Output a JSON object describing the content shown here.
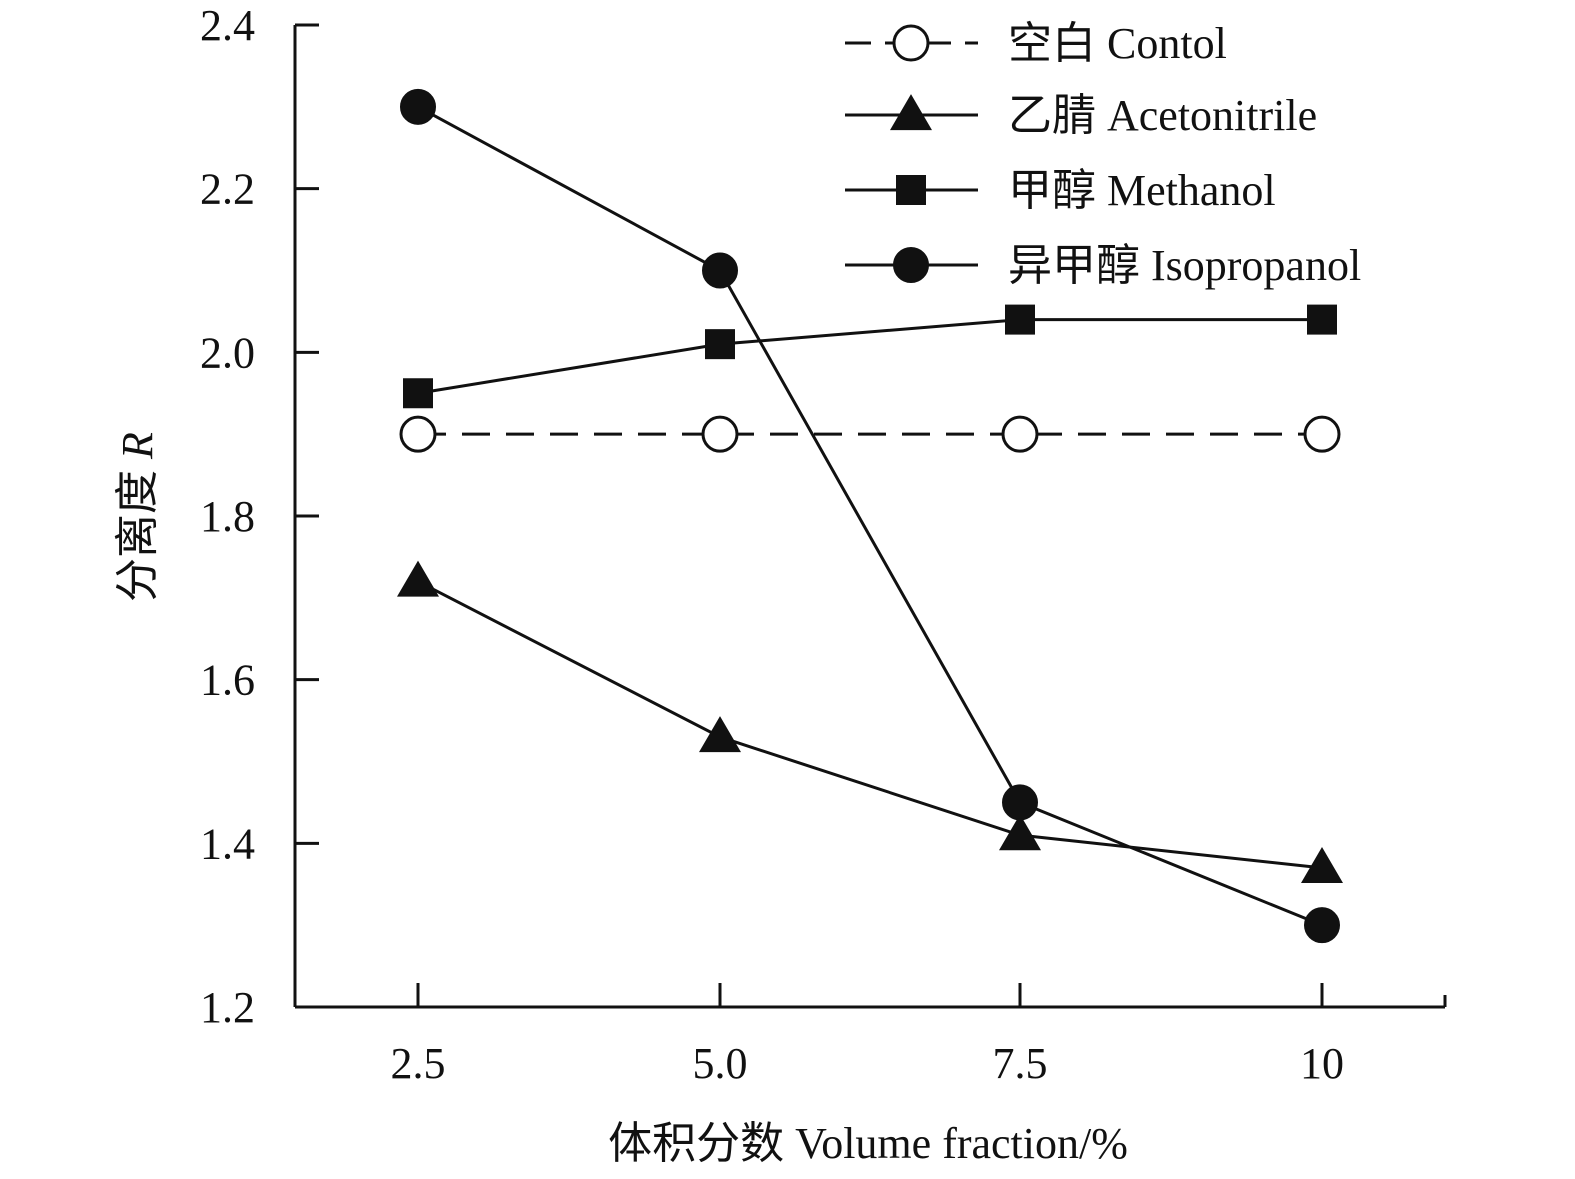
{
  "chart_data": {
    "type": "line",
    "x": [
      "2.5",
      "5.0",
      "7.5",
      "10"
    ],
    "x_values": [
      2.5,
      5.0,
      7.5,
      10.0
    ],
    "xlabel": "体积分数 Volume fraction/%",
    "ylabel_main": "分离度 ",
    "ylabel_var": "R",
    "ylim": [
      1.2,
      2.4
    ],
    "y_ticks": [
      "1.2",
      "1.4",
      "1.6",
      "1.8",
      "2.0",
      "2.2",
      "2.4"
    ],
    "legend_position": "top-right",
    "grid": false,
    "series": [
      {
        "name": "空白 Contol",
        "marker": "open-circle",
        "dashed": true,
        "values": [
          1.9,
          1.9,
          1.9,
          1.9
        ]
      },
      {
        "name": "乙腈 Acetonitrile",
        "marker": "triangle",
        "dashed": false,
        "values": [
          1.72,
          1.53,
          1.41,
          1.37
        ]
      },
      {
        "name": "甲醇 Methanol",
        "marker": "square",
        "dashed": false,
        "values": [
          1.95,
          2.01,
          2.04,
          2.04
        ]
      },
      {
        "name": "异甲醇 Isopropanol",
        "marker": "circle",
        "dashed": false,
        "values": [
          2.3,
          2.1,
          1.45,
          1.3
        ]
      }
    ],
    "colors": {
      "ink": "#111111",
      "background": "#ffffff"
    }
  }
}
